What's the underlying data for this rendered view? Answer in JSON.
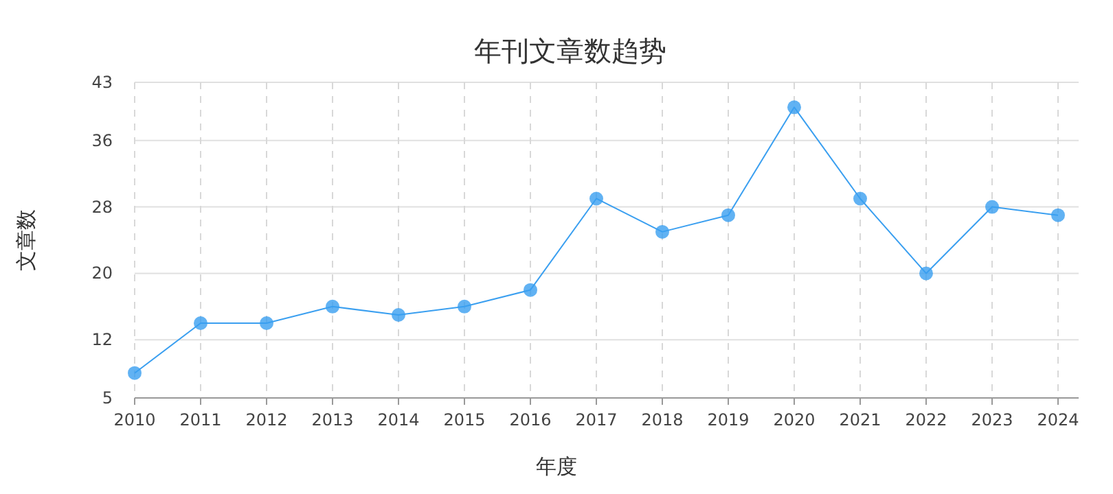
{
  "chart_data": {
    "type": "line",
    "title": "年刊文章数趋势",
    "xlabel": "年度",
    "ylabel": "文章数",
    "categories": [
      "2010",
      "2011",
      "2012",
      "2013",
      "2014",
      "2015",
      "2016",
      "2017",
      "2018",
      "2019",
      "2020",
      "2021",
      "2022",
      "2023",
      "2024"
    ],
    "series": [
      {
        "color": "#3a9ff0",
        "values": [
          8,
          14,
          14,
          16,
          15,
          16,
          18,
          29,
          25,
          27,
          40,
          29,
          20,
          28,
          27
        ]
      }
    ],
    "ylim": [
      5,
      43
    ],
    "yticks": [
      5,
      12,
      20,
      28,
      36,
      43
    ],
    "grid": true,
    "marker": "circle",
    "line_style": "solid"
  }
}
